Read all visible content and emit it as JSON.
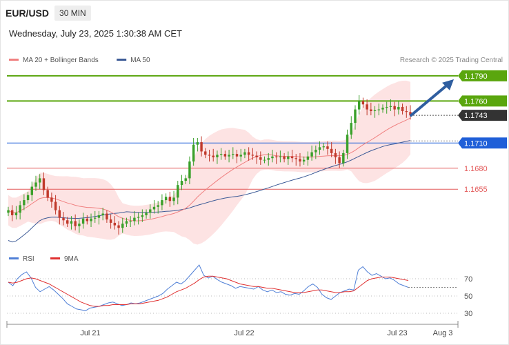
{
  "header": {
    "symbol": "EUR/USD",
    "timeframe": "30 MIN",
    "datetime": "Wednesday, July 23, 2025 1:30:38 AM CET"
  },
  "legend": [
    {
      "label": "MA 20 + Bollinger Bands",
      "color": "#f08080"
    },
    {
      "label": "MA 50",
      "color": "#3c5a96"
    }
  ],
  "credit": "Research © 2025 Trading Central",
  "rsi_legend": [
    {
      "label": "RSI",
      "color": "#4f7fd6"
    },
    {
      "label": "9MA",
      "color": "#e03030"
    }
  ],
  "colors": {
    "resistance": "#5aa60e",
    "support_blue": "#1f5fd8",
    "support_red": "#e35a5a",
    "candle_up": "#3aa02a",
    "candle_down": "#c0392b",
    "arrow": "#2f5ea0",
    "band_fill": "#fde0e0"
  },
  "chart_data": [
    {
      "type": "candlestick",
      "title": "EUR/USD",
      "ylim": [
        1.1587,
        1.1808
      ],
      "x_ticks": [
        "Jul 21",
        "Jul 22",
        "Jul 23",
        "Aug 3"
      ],
      "last_price": 1.1743,
      "projection_target": 1.179,
      "levels": [
        {
          "value": 1.179,
          "label": "1.1790",
          "kind": "resistance"
        },
        {
          "value": 1.176,
          "label": "1.1760",
          "kind": "resistance"
        },
        {
          "value": 1.1743,
          "label": "1.1743",
          "kind": "price"
        },
        {
          "value": 1.171,
          "label": "1.1710",
          "kind": "pivot"
        },
        {
          "value": 1.168,
          "label": "1.1680",
          "kind": "support"
        },
        {
          "value": 1.1655,
          "label": "1.1655",
          "kind": "support"
        }
      ],
      "series": [
        {
          "name": "MA 20 + Bollinger Bands",
          "role": "ma20"
        },
        {
          "name": "MA 50",
          "role": "ma50"
        }
      ],
      "closes": [
        1.163,
        1.1624,
        1.1627,
        1.1636,
        1.1642,
        1.1648,
        1.1658,
        1.1663,
        1.1668,
        1.1654,
        1.1645,
        1.164,
        1.163,
        1.1621,
        1.1618,
        1.1614,
        1.1617,
        1.1611,
        1.1614,
        1.162,
        1.1617,
        1.162,
        1.1621,
        1.1624,
        1.1626,
        1.1619,
        1.1615,
        1.1612,
        1.1609,
        1.1614,
        1.1617,
        1.1617,
        1.1621,
        1.1622,
        1.1624,
        1.1627,
        1.1631,
        1.1634,
        1.1636,
        1.1642,
        1.1646,
        1.1641,
        1.1645,
        1.166,
        1.1665,
        1.1668,
        1.1688,
        1.1708,
        1.1711,
        1.17,
        1.1696,
        1.1695,
        1.1693,
        1.1696,
        1.1697,
        1.1694,
        1.1696,
        1.1697,
        1.1694,
        1.1696,
        1.1699,
        1.1696,
        1.1695,
        1.1693,
        1.169,
        1.169,
        1.1692,
        1.1694,
        1.1693,
        1.1694,
        1.1691,
        1.1694,
        1.1692,
        1.1691,
        1.1688,
        1.169,
        1.1694,
        1.1699,
        1.1702,
        1.1705,
        1.1706,
        1.1703,
        1.1698,
        1.1693,
        1.1686,
        1.1698,
        1.172,
        1.1734,
        1.175,
        1.176,
        1.1756,
        1.175,
        1.1748,
        1.1749,
        1.175,
        1.1752,
        1.1753,
        1.1754,
        1.175,
        1.1753,
        1.1748,
        1.1747,
        1.1743
      ]
    },
    {
      "type": "line",
      "title": "RSI",
      "ylim": [
        20,
        90
      ],
      "y_ticks": [
        70,
        50,
        30
      ],
      "series": [
        {
          "name": "RSI",
          "values": [
            66,
            62,
            70,
            75,
            78,
            71,
            60,
            55,
            58,
            61,
            57,
            52,
            47,
            41,
            38,
            35,
            34,
            33,
            36,
            37,
            38,
            40,
            42,
            43,
            41,
            39,
            40,
            42,
            41,
            42,
            44,
            46,
            48,
            50,
            53,
            58,
            62,
            66,
            64,
            68,
            74,
            80,
            86,
            74,
            71,
            73,
            69,
            66,
            64,
            62,
            59,
            61,
            60,
            59,
            58,
            61,
            57,
            55,
            57,
            54,
            55,
            52,
            51,
            53,
            52,
            56,
            61,
            64,
            60,
            52,
            48,
            46,
            50,
            54,
            56,
            58,
            57,
            80,
            84,
            78,
            74,
            76,
            73,
            70,
            71,
            68,
            64,
            62,
            60
          ]
        },
        {
          "name": "9MA",
          "values": [
            66,
            65,
            66,
            68,
            70,
            71,
            70,
            68,
            66,
            64,
            61,
            58,
            55,
            52,
            49,
            46,
            43,
            41,
            39,
            38,
            38,
            39,
            39,
            40,
            40,
            40,
            40,
            41,
            41,
            41,
            42,
            43,
            44,
            45,
            47,
            49,
            52,
            55,
            57,
            59,
            62,
            65,
            69,
            72,
            73,
            73,
            72,
            71,
            70,
            68,
            66,
            64,
            63,
            62,
            61,
            61,
            60,
            59,
            59,
            58,
            57,
            56,
            55,
            54,
            54,
            54,
            55,
            56,
            57,
            57,
            56,
            55,
            54,
            54,
            55,
            55,
            56,
            60,
            64,
            68,
            70,
            71,
            72,
            72,
            72,
            71,
            70,
            69,
            68
          ]
        }
      ]
    }
  ]
}
